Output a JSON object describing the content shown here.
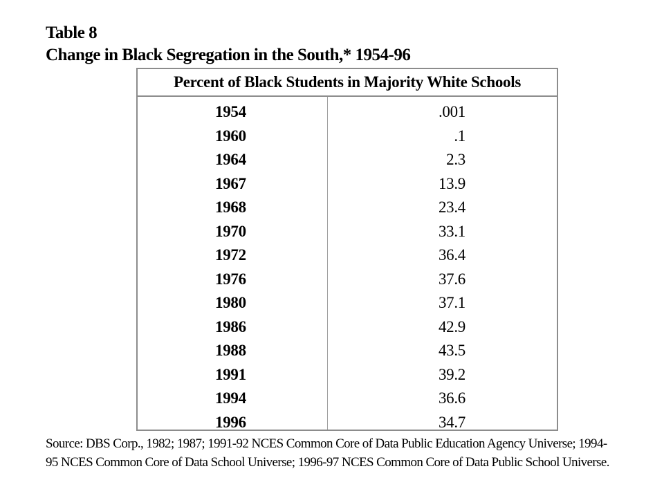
{
  "title_line1": "Table 8",
  "title_line2": "Change in Black Segregation in the South,* 1954-96",
  "chart_data": {
    "type": "table",
    "columns": [
      "",
      "Percent of Black Students in Majority White Schools"
    ],
    "header": "Percent of Black Students in Majority White Schools",
    "rows": [
      {
        "year": "1954",
        "value": ".001"
      },
      {
        "year": "1960",
        "value": ".1"
      },
      {
        "year": "1964",
        "value": "2.3"
      },
      {
        "year": "1967",
        "value": "13.9"
      },
      {
        "year": "1968",
        "value": "23.4"
      },
      {
        "year": "1970",
        "value": "33.1"
      },
      {
        "year": "1972",
        "value": "36.4"
      },
      {
        "year": "1976",
        "value": "37.6"
      },
      {
        "year": "1980",
        "value": "37.1"
      },
      {
        "year": "1986",
        "value": "42.9"
      },
      {
        "year": "1988",
        "value": "43.5"
      },
      {
        "year": "1991",
        "value": "39.2"
      },
      {
        "year": "1994",
        "value": "36.6"
      },
      {
        "year": "1996",
        "value": "34.7"
      }
    ]
  },
  "source_line1": "Source: DBS Corp., 1982; 1987; 1991-92 NCES Common Core of Data Public Education Agency Universe; 1994-",
  "source_line2": "95 NCES Common Core of Data School Universe; 1996-97  NCES Common Core of Data Public School Universe."
}
